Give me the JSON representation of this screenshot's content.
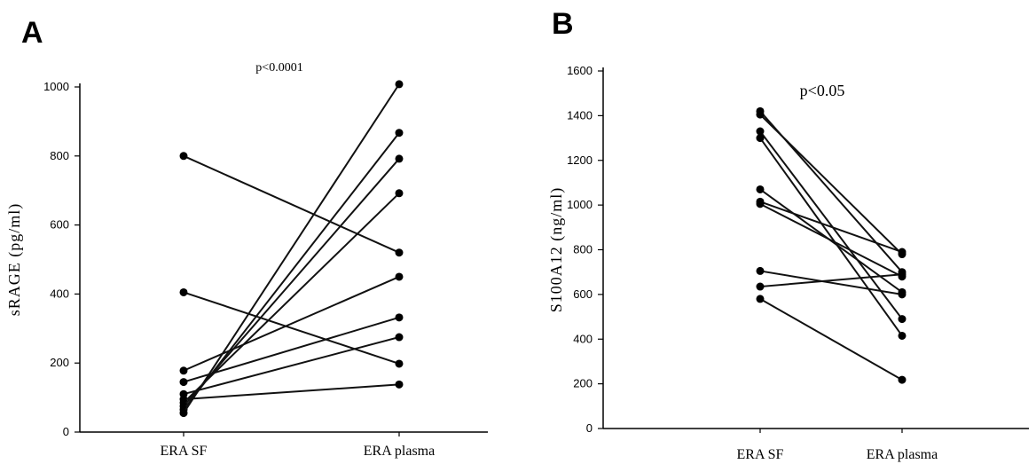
{
  "chart_data": [
    {
      "panel": "A",
      "type": "line",
      "title": "p<0.0001",
      "xlabel": "",
      "ylabel": "sRAGE (pg/ml)",
      "categories": [
        "ERA SF",
        "ERA plasma"
      ],
      "ylim": [
        0,
        1000
      ],
      "yticks": [
        0,
        200,
        400,
        600,
        800,
        1000
      ],
      "grid": false,
      "series": [
        {
          "values": [
            800,
            520
          ]
        },
        {
          "values": [
            405,
            198
          ]
        },
        {
          "values": [
            178,
            450
          ]
        },
        {
          "values": [
            145,
            332
          ]
        },
        {
          "values": [
            110,
            275
          ]
        },
        {
          "values": [
            95,
            138
          ]
        },
        {
          "values": [
            85,
            692
          ]
        },
        {
          "values": [
            75,
            792
          ]
        },
        {
          "values": [
            65,
            867
          ]
        },
        {
          "values": [
            55,
            1008
          ]
        }
      ]
    },
    {
      "panel": "B",
      "type": "line",
      "title": "p<0.05",
      "xlabel": "",
      "ylabel": "S100A12 (ng/ml)",
      "categories": [
        "ERA SF",
        "ERA plasma"
      ],
      "ylim": [
        0,
        1600
      ],
      "yticks": [
        0,
        200,
        400,
        600,
        800,
        1000,
        1200,
        1400,
        1600
      ],
      "grid": false,
      "series": [
        {
          "values": [
            1420,
            700
          ]
        },
        {
          "values": [
            1405,
            780
          ]
        },
        {
          "values": [
            1330,
            490
          ]
        },
        {
          "values": [
            1300,
            415
          ]
        },
        {
          "values": [
            1070,
            610
          ]
        },
        {
          "values": [
            1015,
            790
          ]
        },
        {
          "values": [
            1005,
            680
          ]
        },
        {
          "values": [
            705,
            600
          ]
        },
        {
          "values": [
            635,
            690
          ]
        },
        {
          "values": [
            580,
            218
          ]
        }
      ]
    }
  ]
}
